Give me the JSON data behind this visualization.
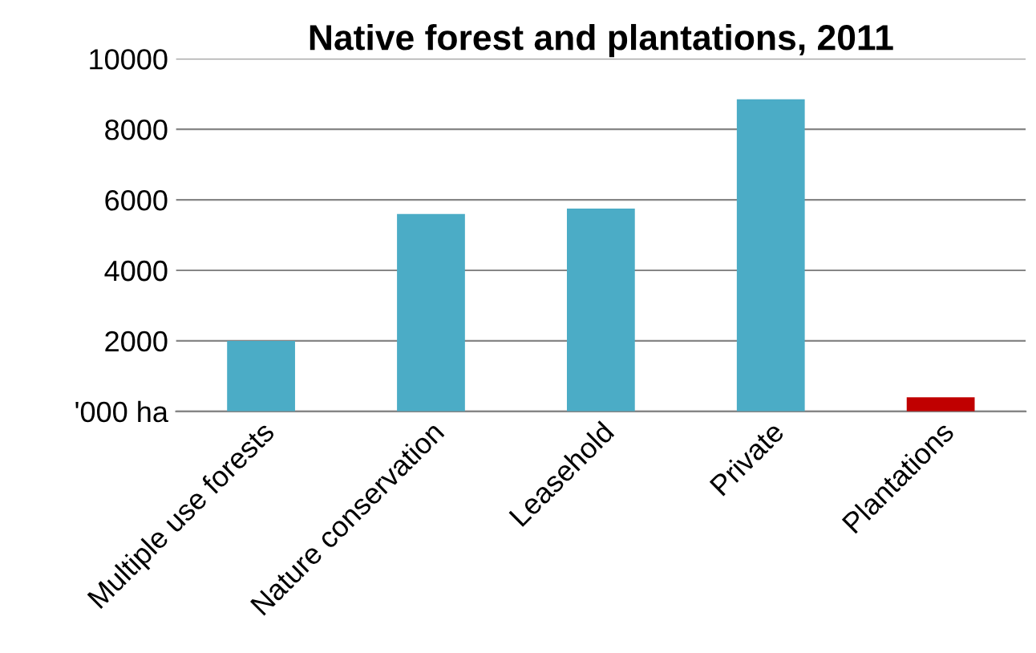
{
  "chart_data": {
    "type": "bar",
    "title": "Native forest and plantations, 2011",
    "categories": [
      "Multiple use forests",
      "Nature conservation",
      "Leasehold",
      "Private",
      "Plantations"
    ],
    "values": [
      2000,
      5600,
      5750,
      8850,
      400
    ],
    "colors": [
      "#4bacc6",
      "#4bacc6",
      "#4bacc6",
      "#4bacc6",
      "#c00000"
    ],
    "ylim": [
      0,
      10000
    ],
    "yticks": [
      {
        "value": 0,
        "label": "'000 ha"
      },
      2000,
      4000,
      6000,
      8000,
      10000
    ],
    "grid": "y"
  }
}
